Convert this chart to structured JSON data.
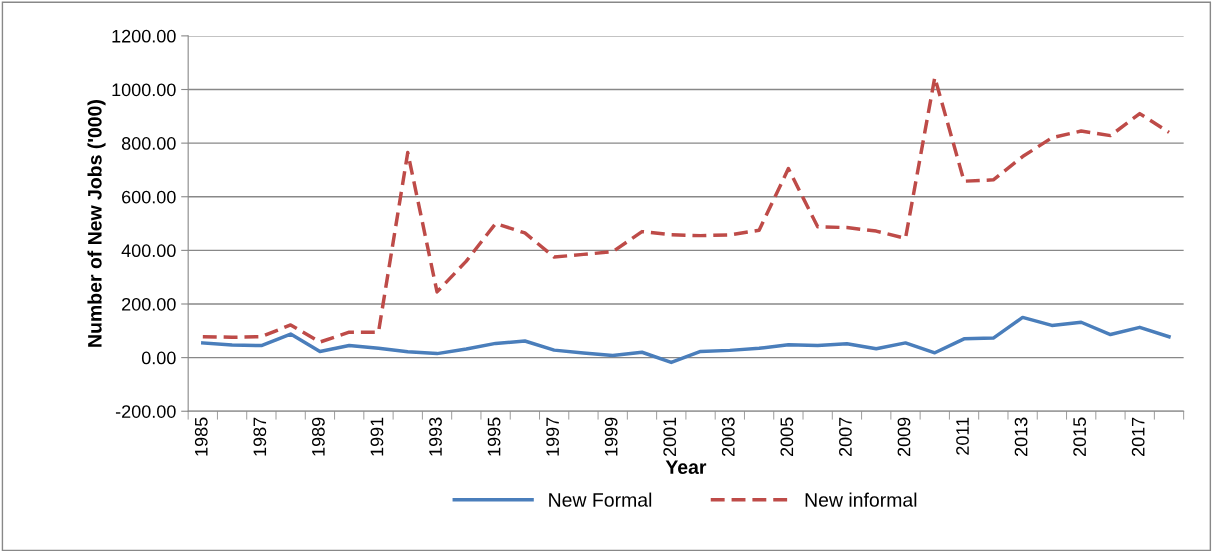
{
  "chart_data": {
    "type": "line",
    "xlabel": "Year",
    "ylabel": "Number of New Jobs ('000)",
    "categories": [
      "1985",
      null,
      "1987",
      null,
      "1989",
      null,
      "1991",
      null,
      "1993",
      null,
      "1995",
      null,
      "1997",
      null,
      "1999",
      null,
      "2001",
      null,
      "2003",
      null,
      "2005",
      null,
      "2007",
      null,
      "2009",
      null,
      "2011",
      null,
      "2013",
      null,
      "2015",
      null,
      "2017",
      null
    ],
    "series": [
      {
        "name": "New Formal",
        "color": "#4a7ebb",
        "line_style": "solid",
        "values": [
          55,
          47,
          45,
          88,
          23,
          45,
          35,
          22,
          15,
          32,
          53,
          62,
          28,
          17,
          8,
          20,
          -18,
          23,
          27,
          35,
          48,
          45,
          52,
          33,
          55,
          18,
          70,
          73,
          150,
          120,
          132,
          86,
          113,
          78
        ]
      },
      {
        "name": "New informal",
        "color": "#be4b48",
        "line_style": "dashed",
        "values": [
          78,
          76,
          78,
          122,
          58,
          95,
          95,
          765,
          245,
          360,
          500,
          465,
          375,
          385,
          395,
          470,
          458,
          455,
          458,
          475,
          705,
          488,
          485,
          472,
          445,
          1045,
          658,
          663,
          750,
          820,
          845,
          828,
          910,
          840
        ]
      }
    ],
    "ylim": [
      -200,
      1200
    ],
    "yticks": [
      {
        "value": -200,
        "label": "-200.00"
      },
      {
        "value": 0,
        "label": "0.00"
      },
      {
        "value": 200,
        "label": "200.00"
      },
      {
        "value": 400,
        "label": "400.00"
      },
      {
        "value": 600,
        "label": "600.00"
      },
      {
        "value": 800,
        "label": "800.00"
      },
      {
        "value": 1000,
        "label": "1000.00"
      },
      {
        "value": 1200,
        "label": "1200.00"
      }
    ],
    "grid": "y",
    "legend": "bottom",
    "marker": "none"
  }
}
